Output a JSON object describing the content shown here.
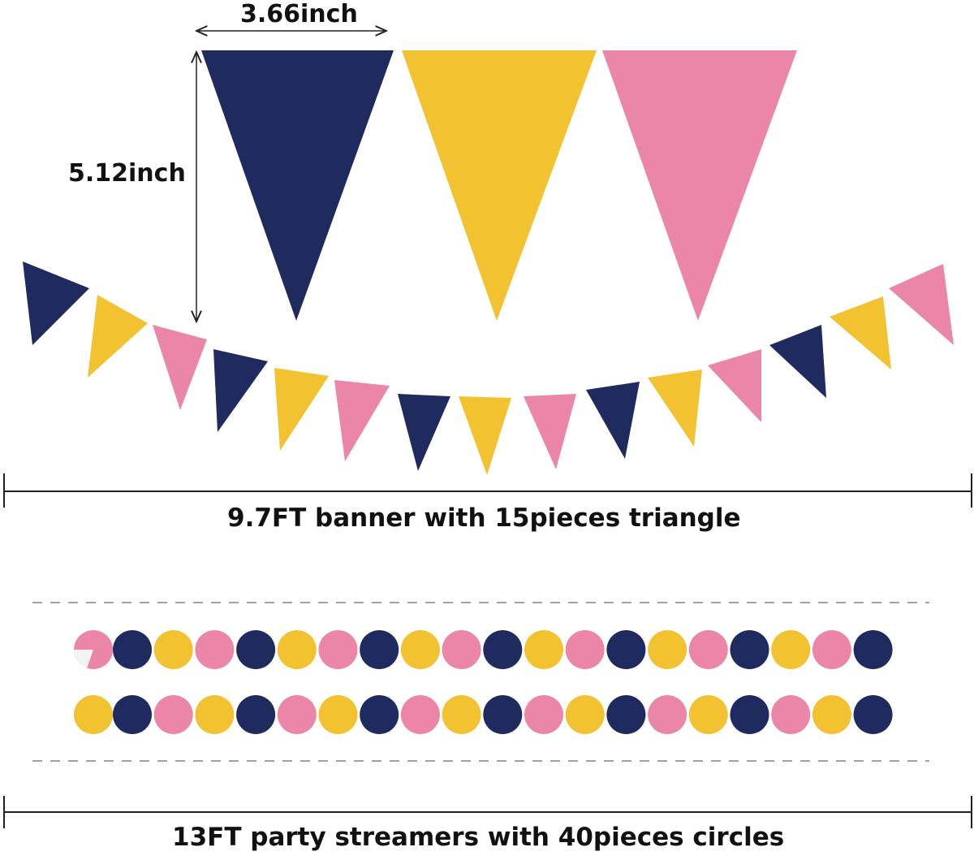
{
  "labels": {
    "width": "3.66inch",
    "height": "5.12inch",
    "banner": "9.7FT banner with 15pieces triangle",
    "streamers": "13FT party streamers with 40pieces circles"
  },
  "colors": {
    "navy": "#1f2a5e",
    "gold": "#f2c230",
    "pink": "#ec86a8"
  },
  "large_triangles": [
    "navy",
    "gold",
    "pink"
  ],
  "banner_triangles": [
    "navy",
    "gold",
    "pink",
    "navy",
    "gold",
    "pink",
    "navy",
    "gold",
    "pink",
    "navy",
    "gold",
    "pink",
    "navy",
    "gold",
    "pink"
  ],
  "streamer_top": [
    "pink",
    "navy",
    "gold",
    "pink",
    "navy",
    "gold",
    "pink",
    "navy",
    "gold",
    "pink",
    "navy",
    "gold",
    "pink",
    "navy",
    "gold",
    "pink",
    "navy",
    "gold",
    "pink",
    "navy"
  ],
  "streamer_bottom": [
    "gold",
    "navy",
    "pink",
    "gold",
    "navy",
    "pink",
    "gold",
    "navy",
    "pink",
    "gold",
    "navy",
    "pink",
    "gold",
    "navy",
    "pink",
    "gold",
    "navy",
    "pink",
    "gold",
    "navy"
  ]
}
